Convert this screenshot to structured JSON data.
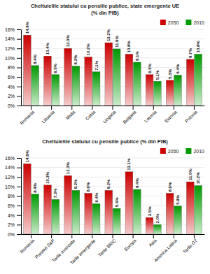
{
  "chart_data": [
    {
      "type": "bar",
      "title": "Cheltuielile statului cu pensiile publice, state emergente UE",
      "subtitle": "(% din PIB)",
      "categories": [
        "Romania",
        "Lituania",
        "Malta",
        "Cehia",
        "Ungaria",
        "Bulgaria",
        "Letonia",
        "Estonia",
        "Polonia"
      ],
      "series": [
        {
          "name": "2050",
          "color": "#cc0000",
          "values": [
            14.8,
            10.4,
            12.0,
            10.2,
            13.2,
            10.8,
            6.5,
            5.3,
            9.7
          ],
          "value_labels": [
            "14.8%",
            "10.4%",
            "12.0%",
            "10.2%",
            "13.2%",
            "10.8%",
            "6.5%",
            "5.3%",
            "9.7%"
          ]
        },
        {
          "name": "2010",
          "color": "#009900",
          "values": [
            8.4,
            6.5,
            8.3,
            7.1,
            11.9,
            9.1,
            5.1,
            6.4,
            10.8
          ],
          "value_labels": [
            "8.4%",
            "6.5%",
            "8.3%",
            "7.1%",
            "11.9%",
            "9.1%",
            "5.1%",
            "6.4%",
            "10.8%"
          ]
        }
      ],
      "ylim": [
        0,
        16
      ],
      "yticks": [
        {
          "value": 0,
          "label": "0%"
        },
        {
          "value": 2,
          "label": "2%"
        },
        {
          "value": 4,
          "label": "4%"
        },
        {
          "value": 6,
          "label": "6%"
        },
        {
          "value": 8,
          "label": "8%"
        },
        {
          "value": 10,
          "label": "10%"
        },
        {
          "value": 12,
          "label": "12%"
        },
        {
          "value": 14,
          "label": "14%"
        },
        {
          "value": 16,
          "label": "16%"
        }
      ],
      "grid": true,
      "legend": "upper right",
      "data_labels": true
    },
    {
      "type": "bar",
      "title": "Cheltuielile statului cu pensiile publice (% din PIB)",
      "categories": [
        "Romania",
        "Panelul S&P",
        "Tarile avansate",
        "Tarile emergente",
        "Tarile BRIC",
        "Europa",
        "Asia",
        "America Latina",
        "Tarile G7"
      ],
      "series": [
        {
          "name": "2050",
          "color": "#cc0000",
          "values": [
            14.8,
            10.3,
            12.3,
            8.6,
            9.2,
            13.1,
            3.5,
            8.6,
            11.0
          ],
          "value_labels": [
            "14.8%",
            "10.3%",
            "12.3%",
            "8.6%",
            "9.2%",
            "13.1%",
            "3.5%",
            "8.6%",
            "11.0%"
          ]
        },
        {
          "name": "2010",
          "color": "#009900",
          "values": [
            8.4,
            7.3,
            9.2,
            6.4,
            5.4,
            9.4,
            2.0,
            5.9,
            10.2
          ],
          "value_labels": [
            "8.4%",
            "7.3%",
            "9.2%",
            "6.4%",
            "5.4%",
            "9.4%",
            "2.0%",
            "5.9%",
            "10.2%"
          ]
        }
      ],
      "ylim": [
        0,
        16
      ],
      "yticks": [
        {
          "value": 0,
          "label": "0%"
        },
        {
          "value": 2,
          "label": "2%"
        },
        {
          "value": 4,
          "label": "4%"
        },
        {
          "value": 6,
          "label": "6%"
        },
        {
          "value": 8,
          "label": "8%"
        },
        {
          "value": 10,
          "label": "10%"
        },
        {
          "value": 12,
          "label": "12%"
        },
        {
          "value": 14,
          "label": "14%"
        },
        {
          "value": 16,
          "label": "16%"
        }
      ],
      "grid": true,
      "legend": "upper right",
      "data_labels": true
    }
  ]
}
